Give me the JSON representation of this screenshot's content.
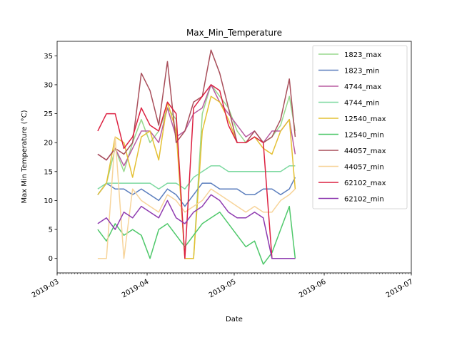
{
  "chart_data": {
    "type": "line",
    "title": "Max_Min_Temperature",
    "xlabel": "Date",
    "ylabel": "Max Min Temperature ($^\\circ$C)",
    "ylabel_display": "Max Min Temperature (°C)",
    "xlim": [
      "2019-03-01",
      "2019-07-01"
    ],
    "ylim": [
      -2.5,
      37.5
    ],
    "x_ticks": [
      "2019-03",
      "2019-04",
      "2019-05",
      "2019-06",
      "2019-07"
    ],
    "y_ticks": [
      0,
      5,
      10,
      15,
      20,
      25,
      30,
      35
    ],
    "legend_position": "upper right",
    "grid": false,
    "x": [
      "2019-03-15",
      "2019-03-18",
      "2019-03-21",
      "2019-03-24",
      "2019-03-27",
      "2019-03-30",
      "2019-04-02",
      "2019-04-05",
      "2019-04-08",
      "2019-04-11",
      "2019-04-14",
      "2019-04-17",
      "2019-04-20",
      "2019-04-23",
      "2019-04-26",
      "2019-04-29",
      "2019-05-02",
      "2019-05-05",
      "2019-05-08",
      "2019-05-11",
      "2019-05-14",
      "2019-05-17",
      "2019-05-20",
      "2019-05-22"
    ],
    "series": [
      {
        "name": "1823_max",
        "color": "#98d98e",
        "values": [
          11,
          13,
          19,
          15,
          20,
          24,
          20,
          22,
          26,
          24,
          0,
          0,
          25,
          30,
          28,
          26,
          22,
          20,
          21,
          20,
          21,
          23,
          28,
          22
        ]
      },
      {
        "name": "1823_min",
        "color": "#5a7dbd",
        "values": [
          11,
          13,
          12,
          12,
          11,
          12,
          11,
          10,
          12,
          11,
          9,
          11,
          13,
          13,
          12,
          12,
          12,
          11,
          11,
          12,
          12,
          11,
          12,
          14
        ]
      },
      {
        "name": "4744_max",
        "color": "#b85ca0",
        "values": [
          18,
          17,
          19,
          16,
          19,
          22,
          22,
          20,
          26,
          21,
          22,
          25,
          26,
          30,
          27,
          25,
          23,
          21,
          22,
          20,
          22,
          22,
          24,
          18
        ]
      },
      {
        "name": "4744_min",
        "color": "#7dd9a0",
        "values": [
          12,
          13,
          13,
          13,
          13,
          13,
          13,
          12,
          13,
          13,
          12,
          14,
          15,
          16,
          16,
          15,
          15,
          15,
          15,
          15,
          15,
          15,
          16,
          16
        ]
      },
      {
        "name": "12540_max",
        "color": "#e4c033",
        "values": [
          11,
          13,
          21,
          20,
          14,
          21,
          22,
          17,
          27,
          22,
          0,
          0,
          22,
          28,
          27,
          24,
          20,
          20,
          21,
          19,
          18,
          22,
          24,
          12
        ]
      },
      {
        "name": "12540_min",
        "color": "#4ec86a",
        "values": [
          5,
          3,
          6,
          4,
          5,
          4,
          0,
          5,
          6,
          4,
          2,
          4,
          6,
          7,
          8,
          6,
          4,
          2,
          3,
          -1,
          1,
          5,
          9,
          0
        ]
      },
      {
        "name": "44057_max",
        "color": "#a84e5a",
        "values": [
          18,
          17,
          19,
          18,
          20,
          32,
          29,
          23,
          34,
          20,
          22,
          27,
          28,
          36,
          32,
          26,
          20,
          20,
          22,
          20,
          21,
          24,
          31,
          21
        ]
      },
      {
        "name": "44057_min",
        "color": "#f7d49a",
        "values": [
          0,
          0,
          21,
          0,
          12,
          10,
          9,
          8,
          11,
          10,
          8,
          9,
          10,
          12,
          11,
          10,
          9,
          8,
          9,
          8,
          8,
          10,
          11,
          12
        ]
      },
      {
        "name": "62102_max",
        "color": "#dc2040",
        "values": [
          22,
          25,
          25,
          19,
          21,
          26,
          23,
          22,
          27,
          25,
          0,
          26,
          28,
          30,
          29,
          23,
          20,
          20,
          21,
          20,
          0,
          0,
          0,
          0
        ]
      },
      {
        "name": "62102_min",
        "color": "#8e3ab0",
        "values": [
          6,
          7,
          5,
          8,
          7,
          9,
          8,
          7,
          10,
          7,
          6,
          8,
          9,
          11,
          10,
          8,
          7,
          7,
          8,
          7,
          0,
          0,
          0,
          0
        ]
      }
    ]
  }
}
